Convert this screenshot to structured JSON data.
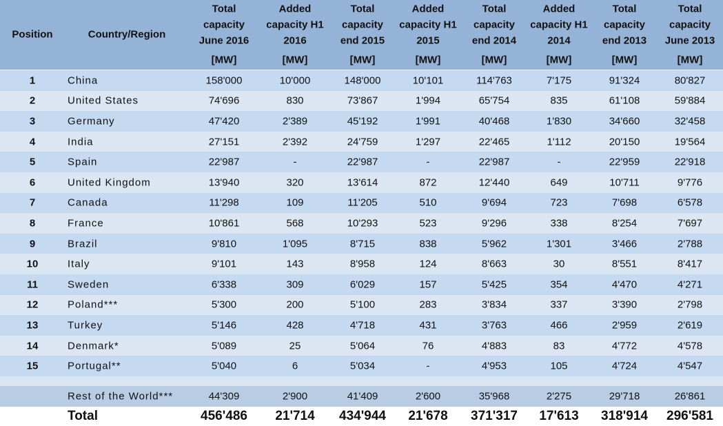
{
  "header": {
    "position": "Position",
    "country": "Country/Region",
    "unit": "[MW]",
    "columns": [
      [
        "Total",
        "capacity",
        "June 2016"
      ],
      [
        "Added",
        "capacity H1",
        "2016"
      ],
      [
        "Total",
        "capacity",
        "end  2015"
      ],
      [
        "Added",
        "capacity H1",
        "2015"
      ],
      [
        "Total",
        "capacity",
        "end  2014"
      ],
      [
        "Added",
        "capacity H1",
        "2014"
      ],
      [
        "Total",
        "capacity",
        "end  2013"
      ],
      [
        "Total",
        "capacity",
        "June 2013"
      ]
    ]
  },
  "table": {
    "rows": [
      [
        "1",
        "China",
        "158'000",
        "10'000",
        "148'000",
        "10'101",
        "114'763",
        "7'175",
        "91'324",
        "80'827"
      ],
      [
        "2",
        "United States",
        "74'696",
        "830",
        "73'867",
        "1'994",
        "65'754",
        "835",
        "61'108",
        "59'884"
      ],
      [
        "3",
        "Germany",
        "47'420",
        "2'389",
        "45'192",
        "1'991",
        "40'468",
        "1'830",
        "34'660",
        "32'458"
      ],
      [
        "4",
        "India",
        "27'151",
        "2'392",
        "24'759",
        "1'297",
        "22'465",
        "1'112",
        "20'150",
        "19'564"
      ],
      [
        "5",
        "Spain",
        "22'987",
        "-",
        "22'987",
        "-",
        "22'987",
        "-",
        "22'959",
        "22'918"
      ],
      [
        "6",
        "United Kingdom",
        "13'940",
        "320",
        "13'614",
        "872",
        "12'440",
        "649",
        "10'711",
        "9'776"
      ],
      [
        "7",
        "Canada",
        "11'298",
        "109",
        "11'205",
        "510",
        "9'694",
        "723",
        "7'698",
        "6'578"
      ],
      [
        "8",
        "France",
        "10'861",
        "568",
        "10'293",
        "523",
        "9'296",
        "338",
        "8'254",
        "7'697"
      ],
      [
        "9",
        "Brazil",
        "9'810",
        "1'095",
        "8'715",
        "838",
        "5'962",
        "1'301",
        "3'466",
        "2'788"
      ],
      [
        "10",
        "Italy",
        "9'101",
        "143",
        "8'958",
        "124",
        "8'663",
        "30",
        "8'551",
        "8'417"
      ],
      [
        "11",
        "Sweden",
        "6'338",
        "309",
        "6'029",
        "157",
        "5'425",
        "354",
        "4'470",
        "4'271"
      ],
      [
        "12",
        "Poland***",
        "5'300",
        "200",
        "5'100",
        "283",
        "3'834",
        "337",
        "3'390",
        "2'798"
      ],
      [
        "13",
        "Turkey",
        "5'146",
        "428",
        "4'718",
        "431",
        "3'763",
        "466",
        "2'959",
        "2'619"
      ],
      [
        "14",
        "Denmark*",
        "5'089",
        "25",
        "5'064",
        "76",
        "4'883",
        "83",
        "4'772",
        "4'578"
      ],
      [
        "15",
        "Portugal**",
        "5'040",
        "6",
        "5'034",
        "-",
        "4'953",
        "105",
        "4'724",
        "4'547"
      ]
    ],
    "rest": [
      "Rest of the World***",
      "44'309",
      "2'900",
      "41'409",
      "2'600",
      "35'968",
      "2'275",
      "29'718",
      "26'861"
    ],
    "total": [
      "Total",
      "456'486",
      "21'714",
      "434'944",
      "21'678",
      "371'317",
      "17'613",
      "318'914",
      "296'581"
    ]
  }
}
